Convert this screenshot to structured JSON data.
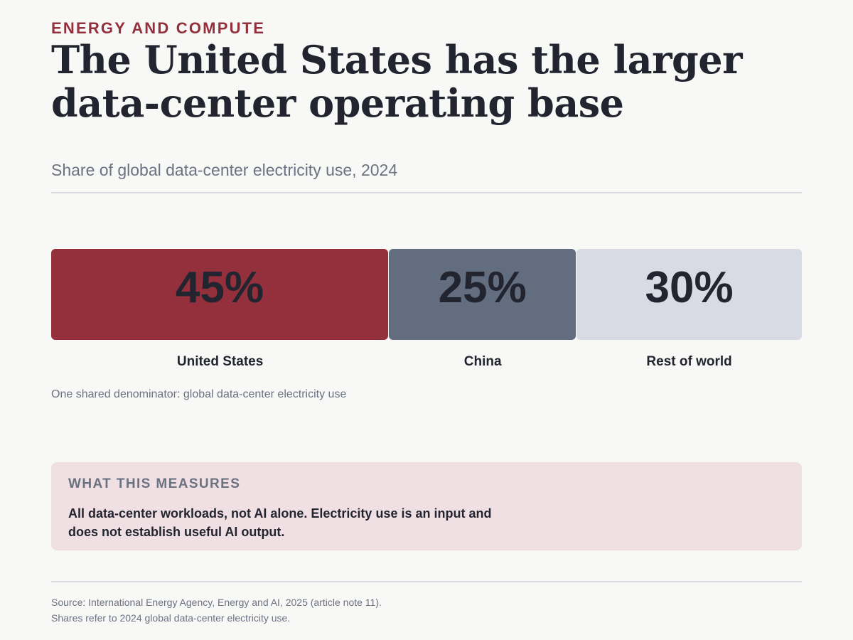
{
  "kicker": "ENERGY AND COMPUTE",
  "headline": {
    "line1": "The United States has the larger",
    "line2": "data-center operating base"
  },
  "subtitle": "Share of global data-center electricity use, 2024",
  "chart_data": {
    "type": "bar",
    "subtype": "stacked-100-percent",
    "orientation": "horizontal",
    "title": "Share of global data-center electricity use, 2024",
    "categories": [
      "United States",
      "China",
      "Rest of world"
    ],
    "values": [
      45,
      25,
      30
    ],
    "value_labels": [
      "45%",
      "25%",
      "30%"
    ],
    "colors": [
      "#93303b",
      "#636d80",
      "#d8dbe3"
    ],
    "xlim": [
      0,
      100
    ],
    "grid": false,
    "legend": "none",
    "annotation": "One shared denominator: global data-center electricity use"
  },
  "callout": {
    "heading": "WHAT THIS MEASURES",
    "body": "All data-center workloads, not AI alone. Electricity use is an input and does not establish useful AI output."
  },
  "source": {
    "line1": "Source: International Energy Agency, Energy and AI, 2025 (article note 11).",
    "line2": "Shares refer to 2024 global data-center electricity use."
  }
}
